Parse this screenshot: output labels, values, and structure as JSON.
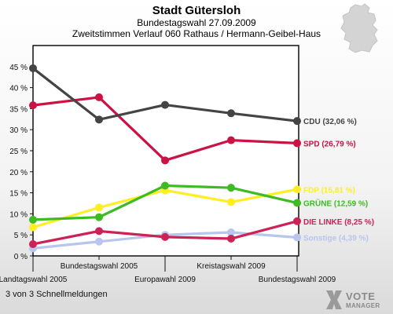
{
  "header": {
    "title": "Stadt Gütersloh",
    "subtitle": "Bundestagswahl 27.09.2009",
    "subtitle2": "Zweitstimmen Verlauf 060 Rathaus / Hermann-Geibel-Haus"
  },
  "footer": {
    "text": "3 von 3 Schnellmeldungen",
    "logo_top": "VOTE",
    "logo_bottom": "MANAGER"
  },
  "chart_data": {
    "type": "line",
    "x": [
      "Landtagswahl 2005",
      "Bundestagswahl 2005",
      "Europawahl 2009",
      "Kreistagswahl 2009",
      "Bundestagswahl 2009"
    ],
    "ylim": [
      0,
      50
    ],
    "yticks": [
      0,
      5,
      10,
      15,
      20,
      25,
      30,
      35,
      40,
      45
    ],
    "ytick_labels": [
      "0 %",
      "5 %",
      "10 %",
      "15 %",
      "20 %",
      "25 %",
      "30 %",
      "35 %",
      "40 %",
      "45 %"
    ],
    "grid": false,
    "series": [
      {
        "name": "Sonstige",
        "label": "Sonstige (4,39 %)",
        "color": "#b8c6ee",
        "values": [
          1.8,
          3.4,
          5.0,
          5.6,
          4.39
        ]
      },
      {
        "name": "DIE LINKE",
        "label": "DIE LINKE (8,25 %)",
        "color": "#cc2255",
        "values": [
          2.8,
          5.9,
          4.5,
          4.1,
          8.25
        ]
      },
      {
        "name": "FDP",
        "label": "FDP (15,81 %)",
        "color": "#ffee22",
        "values": [
          6.8,
          11.5,
          15.6,
          12.8,
          15.81
        ]
      },
      {
        "name": "GRÜNE",
        "label": "GRÜNE (12,59 %)",
        "color": "#3dbb22",
        "values": [
          8.6,
          9.2,
          16.7,
          16.2,
          12.59
        ]
      },
      {
        "name": "SPD",
        "label": "SPD (26,79 %)",
        "color": "#cc1144",
        "values": [
          35.8,
          37.7,
          22.7,
          27.5,
          26.79
        ]
      },
      {
        "name": "CDU",
        "label": "CDU (32,06 %)",
        "color": "#444444",
        "values": [
          44.6,
          32.4,
          35.9,
          33.9,
          32.06
        ]
      }
    ]
  }
}
